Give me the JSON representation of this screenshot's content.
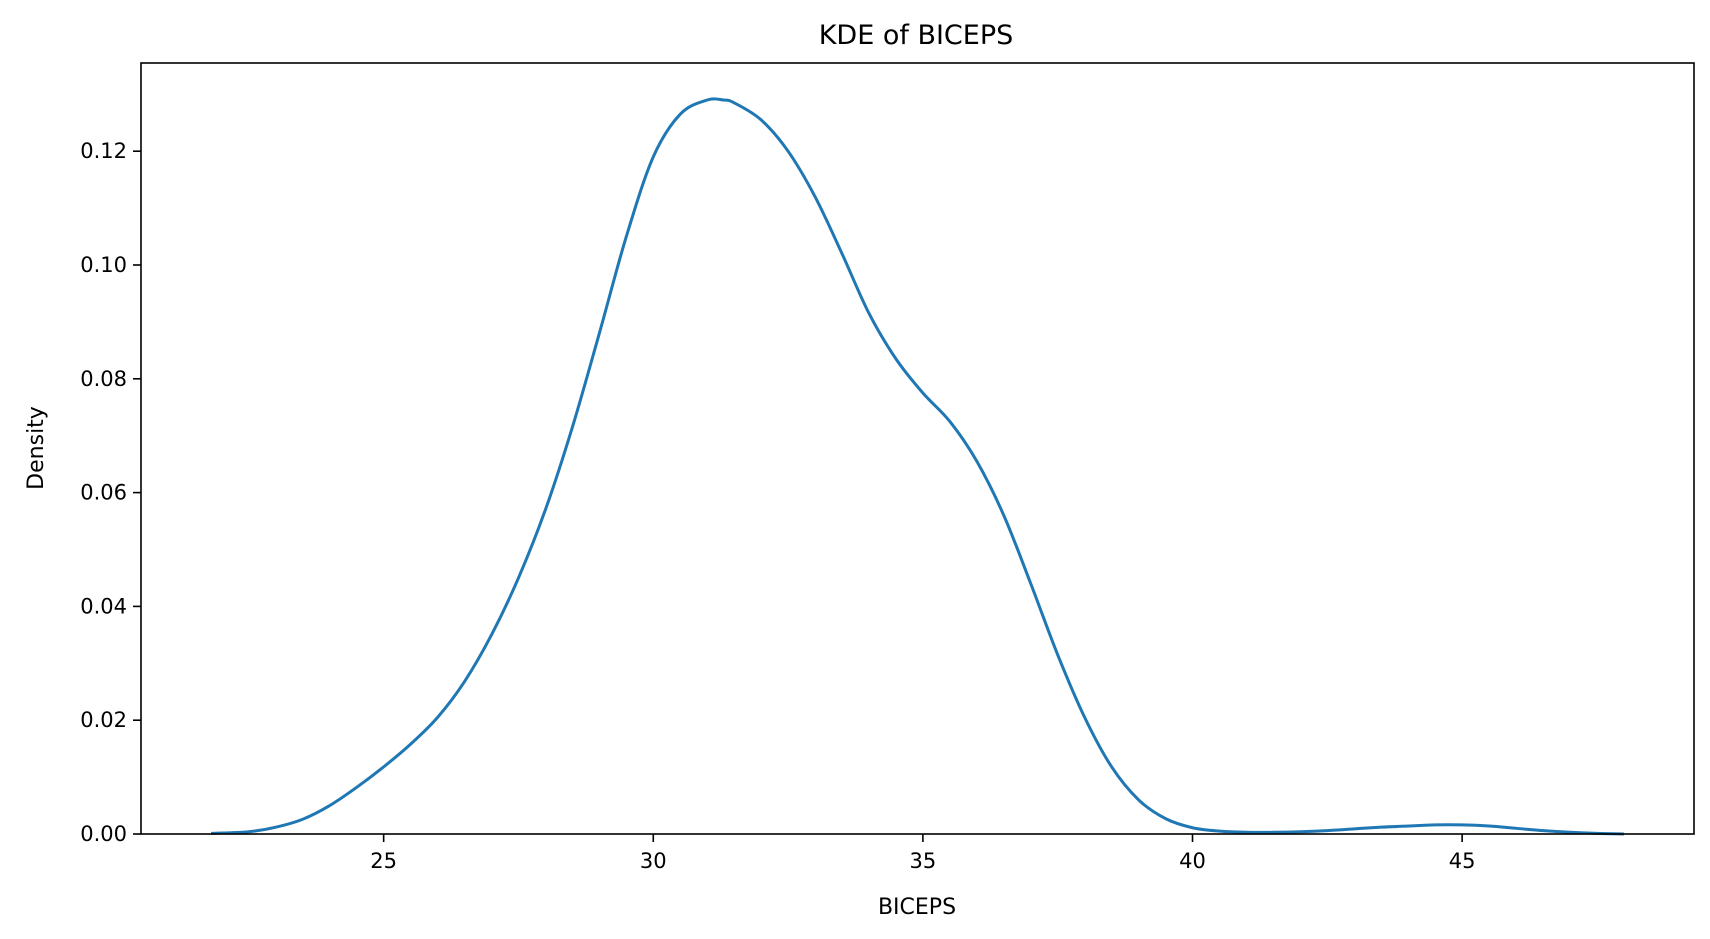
{
  "chart_data": {
    "type": "line",
    "title": "KDE of BICEPS",
    "xlabel": "BICEPS",
    "ylabel": "Density",
    "xlim": [
      20.5,
      49.3
    ],
    "ylim": [
      0.0,
      0.1355
    ],
    "x_ticks": [
      25,
      30,
      35,
      40,
      45
    ],
    "y_ticks": [
      0.0,
      0.02,
      0.04,
      0.06,
      0.08,
      0.1,
      0.12
    ],
    "x_tick_labels": [
      "25",
      "30",
      "35",
      "40",
      "45"
    ],
    "y_tick_labels": [
      "0.00",
      "0.02",
      "0.04",
      "0.06",
      "0.08",
      "0.10",
      "0.12"
    ],
    "grid": false,
    "line_color": "#1f77b4",
    "series": [
      {
        "x": [
          21.8,
          22.5,
          23.0,
          23.5,
          24.0,
          24.5,
          25.0,
          25.5,
          26.0,
          26.5,
          27.0,
          27.5,
          28.0,
          28.5,
          29.0,
          29.5,
          30.0,
          30.5,
          31.0,
          31.3,
          31.5,
          32.0,
          32.5,
          33.0,
          33.5,
          34.0,
          34.5,
          35.0,
          35.5,
          36.0,
          36.5,
          37.0,
          37.5,
          38.0,
          38.5,
          39.0,
          39.5,
          40.0,
          40.5,
          41.0,
          41.5,
          42.0,
          42.5,
          43.0,
          43.5,
          44.0,
          44.5,
          45.0,
          45.5,
          46.0,
          46.5,
          47.0,
          47.5,
          48.0
        ],
        "y": [
          0.0001,
          0.0004,
          0.0012,
          0.0026,
          0.005,
          0.0082,
          0.0118,
          0.0158,
          0.0205,
          0.0268,
          0.035,
          0.045,
          0.057,
          0.0715,
          0.088,
          0.105,
          0.119,
          0.1265,
          0.129,
          0.129,
          0.1285,
          0.1255,
          0.12,
          0.112,
          0.102,
          0.0915,
          0.0835,
          0.0775,
          0.0725,
          0.0655,
          0.056,
          0.044,
          0.0315,
          0.0205,
          0.0118,
          0.006,
          0.0027,
          0.0011,
          0.0005,
          0.0003,
          0.0003,
          0.0004,
          0.0006,
          0.0009,
          0.0012,
          0.0014,
          0.0016,
          0.0016,
          0.0014,
          0.001,
          0.0006,
          0.0003,
          0.0001,
          0.0
        ]
      }
    ]
  }
}
